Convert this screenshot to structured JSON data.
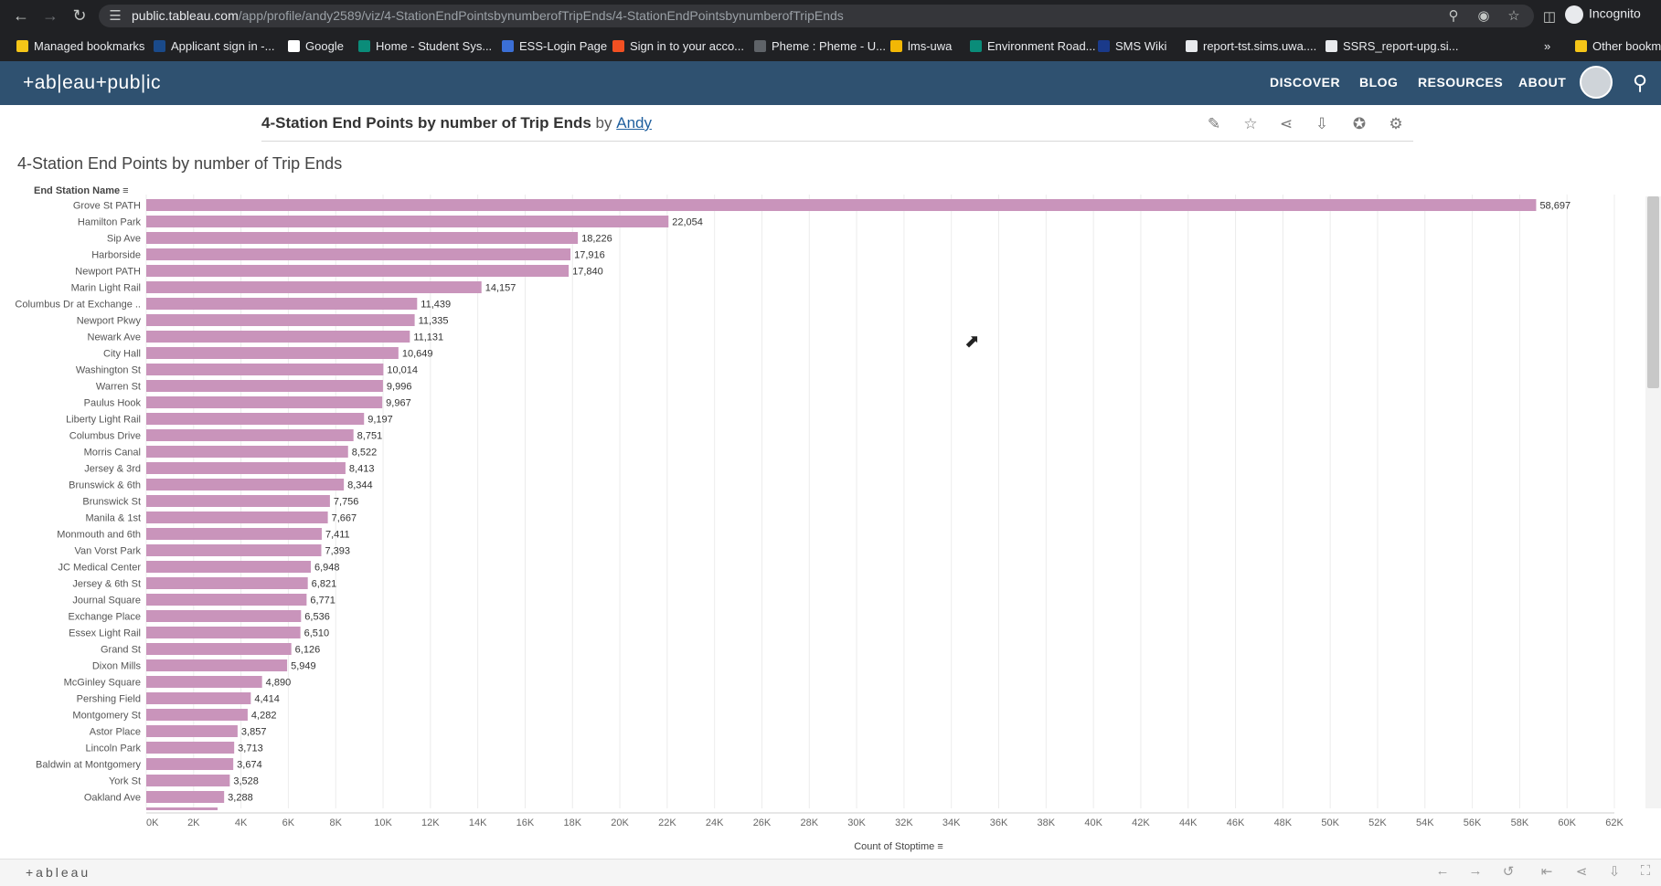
{
  "browser": {
    "url_host": "public.tableau.com",
    "url_path": "/app/profile/andy2589/viz/4-StationEndPointsbynumberofTripEnds/4-StationEndPointsbynumberofTripEnds",
    "incognito_label": "Incognito"
  },
  "bookmarks": [
    {
      "label": "Managed bookmarks",
      "color": "#f5c518"
    },
    {
      "label": "Applicant sign in -...",
      "color": "#1a4a8a"
    },
    {
      "label": "Google",
      "color": "#ffffff"
    },
    {
      "label": "Home - Student Sys...",
      "color": "#0a8c79"
    },
    {
      "label": "ESS-Login Page",
      "color": "#3b6fd6"
    },
    {
      "label": "Sign in to your acco...",
      "color": "#f25022"
    },
    {
      "label": "Pheme : Pheme - U...",
      "color": "#5f6368"
    },
    {
      "label": "lms-uwa",
      "color": "#f2b705"
    },
    {
      "label": "Environment Road...",
      "color": "#0a8c79"
    },
    {
      "label": "SMS Wiki",
      "color": "#1a3a8a"
    },
    {
      "label": "report-tst.sims.uwa....",
      "color": "#e8eaed"
    },
    {
      "label": "SSRS_report-upg.si...",
      "color": "#e8eaed"
    }
  ],
  "bookmarks_more": "»",
  "bookmarks_other": "Other bookm",
  "tableau": {
    "logo": "+ab|eau+pub|ic",
    "nav": [
      "DISCOVER",
      "BLOG",
      "RESOURCES",
      "ABOUT"
    ]
  },
  "viz": {
    "title": "4-Station End Points by number of Trip Ends",
    "by": "by",
    "author": "Andy",
    "sheet_title": "4-Station End Points by number of Trip Ends"
  },
  "footer": {
    "logo": "+ableau"
  },
  "chart_data": {
    "type": "bar",
    "orientation": "horizontal",
    "ylabel": "End Station Name",
    "xlabel": "Count of Stoptime",
    "xlim": [
      0,
      62000
    ],
    "xticks": [
      "0K",
      "2K",
      "4K",
      "6K",
      "8K",
      "10K",
      "12K",
      "14K",
      "16K",
      "18K",
      "20K",
      "22K",
      "24K",
      "26K",
      "28K",
      "30K",
      "32K",
      "34K",
      "36K",
      "38K",
      "40K",
      "42K",
      "44K",
      "46K",
      "48K",
      "50K",
      "52K",
      "54K",
      "56K",
      "58K",
      "60K",
      "62K"
    ],
    "bar_color": "#c994bb",
    "categories": [
      "Grove St PATH",
      "Hamilton Park",
      "Sip Ave",
      "Harborside",
      "Newport PATH",
      "Marin Light Rail",
      "Columbus Dr at Exchange ..",
      "Newport Pkwy",
      "Newark Ave",
      "City Hall",
      "Washington St",
      "Warren St",
      "Paulus Hook",
      "Liberty Light Rail",
      "Columbus Drive",
      "Morris Canal",
      "Jersey & 3rd",
      "Brunswick & 6th",
      "Brunswick St",
      "Manila & 1st",
      "Monmouth and 6th",
      "Van Vorst Park",
      "JC Medical Center",
      "Jersey & 6th St",
      "Journal Square",
      "Exchange Place",
      "Essex Light Rail",
      "Grand St",
      "Dixon Mills",
      "McGinley Square",
      "Pershing Field",
      "Montgomery St",
      "Astor Place",
      "Lincoln Park",
      "Baldwin at Montgomery",
      "York St",
      "Oakland Ave"
    ],
    "values": [
      58697,
      22054,
      18226,
      17916,
      17840,
      14157,
      11439,
      11335,
      11131,
      10649,
      10014,
      9996,
      9967,
      9197,
      8751,
      8522,
      8413,
      8344,
      7756,
      7667,
      7411,
      7393,
      6948,
      6821,
      6771,
      6536,
      6510,
      6126,
      5949,
      4890,
      4414,
      4282,
      3857,
      3713,
      3674,
      3528,
      3288
    ],
    "labels": [
      "58,697",
      "22,054",
      "18,226",
      "17,916",
      "17,840",
      "14,157",
      "11,439",
      "11,335",
      "11,131",
      "10,649",
      "10,014",
      "9,996",
      "9,967",
      "9,197",
      "8,751",
      "8,522",
      "8,413",
      "8,344",
      "7,756",
      "7,667",
      "7,411",
      "7,393",
      "6,948",
      "6,821",
      "6,771",
      "6,536",
      "6,510",
      "6,126",
      "5,949",
      "4,890",
      "4,414",
      "4,282",
      "3,857",
      "3,713",
      "3,674",
      "3,528",
      "3,288"
    ]
  }
}
